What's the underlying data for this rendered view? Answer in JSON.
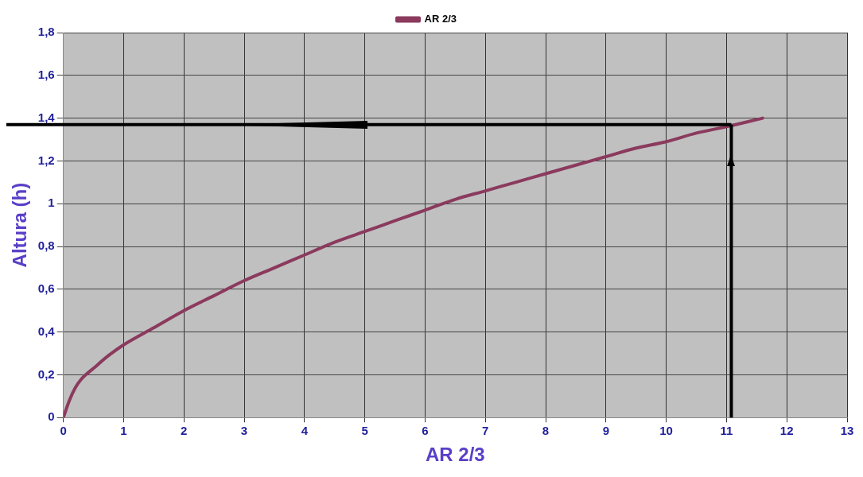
{
  "chart_data": {
    "type": "line",
    "xlabel": "AR 2/3",
    "ylabel": "Altura (h)",
    "x": [
      0,
      0.1,
      0.2,
      0.3,
      0.5,
      0.75,
      1,
      1.5,
      2,
      2.5,
      3,
      3.5,
      4,
      4.5,
      5,
      5.5,
      6,
      6.5,
      7,
      7.5,
      8,
      8.5,
      9,
      9.5,
      10,
      10.5,
      11,
      11.6
    ],
    "series": [
      {
        "name": "AR 2/3",
        "color": "#8b3a5e",
        "values": [
          0,
          0.08,
          0.14,
          0.18,
          0.23,
          0.29,
          0.34,
          0.42,
          0.5,
          0.57,
          0.64,
          0.7,
          0.76,
          0.82,
          0.87,
          0.92,
          0.97,
          1.02,
          1.06,
          1.1,
          1.14,
          1.18,
          1.22,
          1.26,
          1.29,
          1.33,
          1.36,
          1.4
        ]
      }
    ],
    "xlim": [
      0,
      13
    ],
    "xticks": [
      0,
      1,
      2,
      3,
      4,
      5,
      6,
      7,
      8,
      9,
      10,
      11,
      12,
      13
    ],
    "ylim": [
      0,
      1.8
    ],
    "yticks": [
      0,
      {
        "value": 0.2,
        "label": "0,2"
      },
      {
        "value": 0.4,
        "label": "0,4"
      },
      {
        "value": 0.6,
        "label": "0,6"
      },
      {
        "value": 0.8,
        "label": "0,8"
      },
      1,
      {
        "value": 1.2,
        "label": "1,2"
      },
      {
        "value": 1.4,
        "label": "1,4"
      },
      {
        "value": 1.6,
        "label": "1,6"
      },
      {
        "value": 1.8,
        "label": "1,8"
      }
    ],
    "ref_lines": [
      {
        "axis": "y",
        "value": 1.37,
        "color": "#000000"
      },
      {
        "axis": "x",
        "value": 11.08,
        "color": "#000000"
      }
    ],
    "grid": true,
    "legend": "top",
    "marker": "none",
    "line_style": "solid"
  }
}
